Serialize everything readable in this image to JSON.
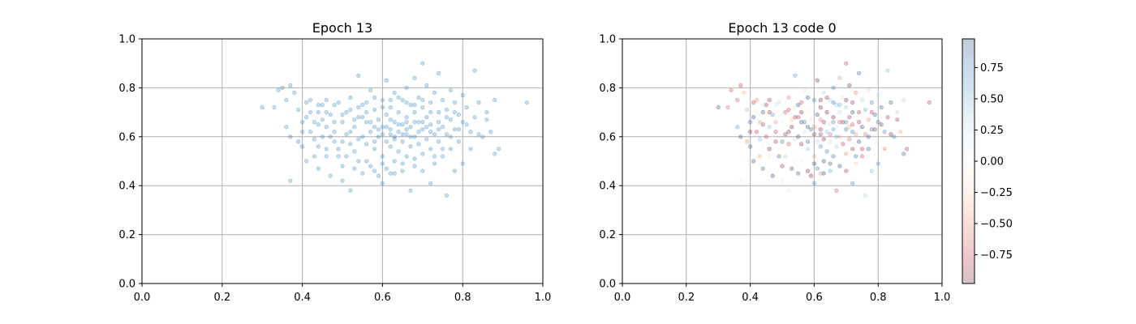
{
  "chart_data": [
    {
      "type": "scatter",
      "title": "Epoch 13",
      "xlim": [
        0.0,
        1.0
      ],
      "ylim": [
        0.0,
        1.0
      ],
      "x_ticks": [
        "0.0",
        "0.2",
        "0.4",
        "0.6",
        "0.8",
        "1.0"
      ],
      "y_ticks": [
        "0.0",
        "0.2",
        "0.4",
        "0.6",
        "0.8",
        "1.0"
      ],
      "grid": true,
      "point_color": "#1f77b4",
      "point_alpha": 0.25,
      "points": [
        [
          0.3,
          0.72
        ],
        [
          0.33,
          0.72
        ],
        [
          0.34,
          0.79
        ],
        [
          0.35,
          0.8
        ],
        [
          0.36,
          0.75
        ],
        [
          0.37,
          0.81
        ],
        [
          0.36,
          0.64
        ],
        [
          0.37,
          0.6
        ],
        [
          0.37,
          0.42
        ],
        [
          0.38,
          0.78
        ],
        [
          0.39,
          0.71
        ],
        [
          0.4,
          0.66
        ],
        [
          0.4,
          0.56
        ],
        [
          0.41,
          0.5
        ],
        [
          0.41,
          0.68
        ],
        [
          0.42,
          0.75
        ],
        [
          0.42,
          0.62
        ],
        [
          0.43,
          0.59
        ],
        [
          0.43,
          0.52
        ],
        [
          0.44,
          0.7
        ],
        [
          0.44,
          0.65
        ],
        [
          0.44,
          0.47
        ],
        [
          0.45,
          0.73
        ],
        [
          0.45,
          0.6
        ],
        [
          0.46,
          0.64
        ],
        [
          0.46,
          0.55
        ],
        [
          0.47,
          0.44
        ],
        [
          0.47,
          0.69
        ],
        [
          0.48,
          0.62
        ],
        [
          0.48,
          0.58
        ],
        [
          0.49,
          0.74
        ],
        [
          0.49,
          0.52
        ],
        [
          0.5,
          0.66
        ],
        [
          0.5,
          0.48
        ],
        [
          0.5,
          0.42
        ],
        [
          0.51,
          0.7
        ],
        [
          0.51,
          0.61
        ],
        [
          0.52,
          0.57
        ],
        [
          0.52,
          0.76
        ],
        [
          0.52,
          0.38
        ],
        [
          0.53,
          0.64
        ],
        [
          0.53,
          0.54
        ],
        [
          0.54,
          0.85
        ],
        [
          0.54,
          0.68
        ],
        [
          0.54,
          0.5
        ],
        [
          0.55,
          0.73
        ],
        [
          0.55,
          0.6
        ],
        [
          0.55,
          0.45
        ],
        [
          0.56,
          0.66
        ],
        [
          0.56,
          0.57
        ],
        [
          0.57,
          0.79
        ],
        [
          0.57,
          0.62
        ],
        [
          0.57,
          0.48
        ],
        [
          0.58,
          0.71
        ],
        [
          0.58,
          0.55
        ],
        [
          0.59,
          0.67
        ],
        [
          0.59,
          0.6
        ],
        [
          0.59,
          0.44
        ],
        [
          0.6,
          0.75
        ],
        [
          0.6,
          0.64
        ],
        [
          0.6,
          0.52
        ],
        [
          0.6,
          0.41
        ],
        [
          0.61,
          0.83
        ],
        [
          0.61,
          0.69
        ],
        [
          0.61,
          0.58
        ],
        [
          0.61,
          0.47
        ],
        [
          0.62,
          0.72
        ],
        [
          0.62,
          0.63
        ],
        [
          0.62,
          0.56
        ],
        [
          0.62,
          0.45
        ],
        [
          0.63,
          0.78
        ],
        [
          0.63,
          0.66
        ],
        [
          0.63,
          0.6
        ],
        [
          0.63,
          0.5
        ],
        [
          0.64,
          0.7
        ],
        [
          0.64,
          0.62
        ],
        [
          0.64,
          0.54
        ],
        [
          0.65,
          0.75
        ],
        [
          0.65,
          0.65
        ],
        [
          0.65,
          0.58
        ],
        [
          0.65,
          0.46
        ],
        [
          0.66,
          0.8
        ],
        [
          0.66,
          0.68
        ],
        [
          0.66,
          0.61
        ],
        [
          0.66,
          0.52
        ],
        [
          0.67,
          0.73
        ],
        [
          0.67,
          0.64
        ],
        [
          0.67,
          0.56
        ],
        [
          0.67,
          0.38
        ],
        [
          0.68,
          0.84
        ],
        [
          0.68,
          0.7
        ],
        [
          0.68,
          0.6
        ],
        [
          0.68,
          0.48
        ],
        [
          0.69,
          0.76
        ],
        [
          0.69,
          0.66
        ],
        [
          0.69,
          0.57
        ],
        [
          0.7,
          0.9
        ],
        [
          0.7,
          0.72
        ],
        [
          0.7,
          0.63
        ],
        [
          0.7,
          0.53
        ],
        [
          0.71,
          0.81
        ],
        [
          0.71,
          0.68
        ],
        [
          0.71,
          0.59
        ],
        [
          0.72,
          0.74
        ],
        [
          0.72,
          0.65
        ],
        [
          0.72,
          0.55
        ],
        [
          0.72,
          0.41
        ],
        [
          0.73,
          0.78
        ],
        [
          0.73,
          0.61
        ],
        [
          0.73,
          0.49
        ],
        [
          0.74,
          0.86
        ],
        [
          0.74,
          0.7
        ],
        [
          0.74,
          0.58
        ],
        [
          0.75,
          0.75
        ],
        [
          0.75,
          0.64
        ],
        [
          0.75,
          0.52
        ],
        [
          0.76,
          0.36
        ],
        [
          0.76,
          0.71
        ],
        [
          0.76,
          0.61
        ],
        [
          0.77,
          0.79
        ],
        [
          0.77,
          0.67
        ],
        [
          0.77,
          0.55
        ],
        [
          0.78,
          0.74
        ],
        [
          0.78,
          0.63
        ],
        [
          0.78,
          0.46
        ],
        [
          0.79,
          0.69
        ],
        [
          0.79,
          0.58
        ],
        [
          0.8,
          0.77
        ],
        [
          0.8,
          0.66
        ],
        [
          0.8,
          0.49
        ],
        [
          0.81,
          0.72
        ],
        [
          0.82,
          0.62
        ],
        [
          0.82,
          0.55
        ],
        [
          0.83,
          0.87
        ],
        [
          0.83,
          0.68
        ],
        [
          0.84,
          0.74
        ],
        [
          0.85,
          0.6
        ],
        [
          0.86,
          0.67
        ],
        [
          0.87,
          0.62
        ],
        [
          0.88,
          0.75
        ],
        [
          0.88,
          0.53
        ],
        [
          0.89,
          0.55
        ],
        [
          0.96,
          0.74
        ],
        [
          0.46,
          0.7
        ],
        [
          0.48,
          0.66
        ],
        [
          0.53,
          0.67
        ],
        [
          0.56,
          0.7
        ],
        [
          0.58,
          0.64
        ],
        [
          0.6,
          0.61
        ],
        [
          0.62,
          0.67
        ],
        [
          0.64,
          0.65
        ],
        [
          0.66,
          0.63
        ],
        [
          0.68,
          0.66
        ],
        [
          0.7,
          0.66
        ],
        [
          0.72,
          0.62
        ],
        [
          0.74,
          0.63
        ],
        [
          0.52,
          0.62
        ],
        [
          0.54,
          0.59
        ],
        [
          0.57,
          0.66
        ],
        [
          0.59,
          0.63
        ],
        [
          0.61,
          0.64
        ],
        [
          0.63,
          0.59
        ],
        [
          0.65,
          0.61
        ],
        [
          0.67,
          0.6
        ],
        [
          0.69,
          0.62
        ],
        [
          0.71,
          0.64
        ],
        [
          0.55,
          0.68
        ],
        [
          0.58,
          0.58
        ],
        [
          0.62,
          0.61
        ],
        [
          0.66,
          0.66
        ],
        [
          0.5,
          0.58
        ],
        [
          0.47,
          0.6
        ],
        [
          0.45,
          0.67
        ],
        [
          0.43,
          0.66
        ],
        [
          0.42,
          0.7
        ],
        [
          0.4,
          0.62
        ],
        [
          0.39,
          0.58
        ],
        [
          0.44,
          0.56
        ],
        [
          0.46,
          0.52
        ],
        [
          0.49,
          0.55
        ],
        [
          0.51,
          0.52
        ],
        [
          0.53,
          0.47
        ],
        [
          0.56,
          0.5
        ],
        [
          0.58,
          0.46
        ],
        [
          0.6,
          0.49
        ],
        [
          0.63,
          0.45
        ],
        [
          0.65,
          0.49
        ],
        [
          0.68,
          0.51
        ],
        [
          0.7,
          0.46
        ],
        [
          0.73,
          0.52
        ],
        [
          0.75,
          0.55
        ],
        [
          0.77,
          0.6
        ],
        [
          0.79,
          0.63
        ],
        [
          0.81,
          0.65
        ],
        [
          0.84,
          0.61
        ],
        [
          0.86,
          0.7
        ],
        [
          0.78,
          0.7
        ],
        [
          0.76,
          0.68
        ],
        [
          0.74,
          0.66
        ],
        [
          0.72,
          0.7
        ],
        [
          0.7,
          0.75
        ],
        [
          0.68,
          0.73
        ],
        [
          0.66,
          0.74
        ],
        [
          0.64,
          0.76
        ],
        [
          0.62,
          0.75
        ],
        [
          0.6,
          0.72
        ],
        [
          0.58,
          0.76
        ],
        [
          0.56,
          0.74
        ],
        [
          0.54,
          0.72
        ],
        [
          0.52,
          0.71
        ],
        [
          0.5,
          0.69
        ],
        [
          0.48,
          0.73
        ],
        [
          0.46,
          0.75
        ],
        [
          0.44,
          0.73
        ],
        [
          0.41,
          0.74
        ]
      ]
    },
    {
      "type": "scatter",
      "title": "Epoch 13 code 0",
      "xlim": [
        0.0,
        1.0
      ],
      "ylim": [
        0.0,
        1.0
      ],
      "x_ticks": [
        "0.0",
        "0.2",
        "0.4",
        "0.6",
        "0.8",
        "1.0"
      ],
      "y_ticks": [
        "0.0",
        "0.2",
        "0.4",
        "0.6",
        "0.8",
        "1.0"
      ],
      "grid": true,
      "point_alpha": 0.25,
      "colormap": "RdBu",
      "colorbar": {
        "min": -0.98,
        "max": 0.98,
        "ticks": [
          0.75,
          0.5,
          0.25,
          0.0,
          -0.25,
          -0.5,
          -0.75
        ],
        "tick_labels": [
          "0.75",
          "0.50",
          "0.25",
          "0.00",
          "−0.25",
          "−0.50",
          "−0.75"
        ],
        "colors": [
          "#67001f",
          "#b2182b",
          "#d6604d",
          "#f4a582",
          "#fddbc7",
          "#f7f7f7",
          "#d1e5f0",
          "#92c5de",
          "#4393c3",
          "#2166ac",
          "#053061"
        ]
      },
      "points_same_as": "Epoch 13"
    }
  ]
}
